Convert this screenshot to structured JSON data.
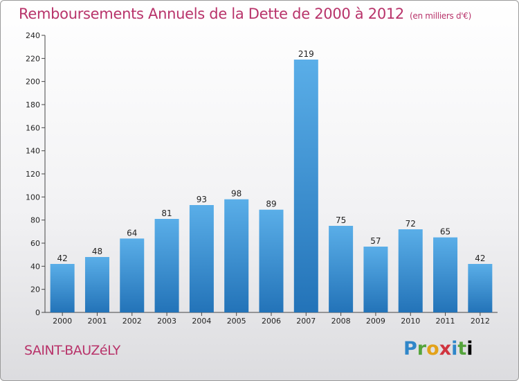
{
  "title": "Remboursements Annuels de la Dette de 2000 à 2012",
  "subtitle": "(en milliers d'€)",
  "commune": "SAINT-BAUZéLY",
  "logo": {
    "letters": [
      "P",
      "r",
      "o",
      "x",
      "i",
      "t",
      "i"
    ]
  },
  "colors": {
    "title": "#b8336a",
    "bar_top": "#5aaee8",
    "bar_bottom": "#2373b8"
  },
  "chart_data": {
    "type": "bar",
    "categories": [
      "2000",
      "2001",
      "2002",
      "2003",
      "2004",
      "2005",
      "2006",
      "2007",
      "2008",
      "2009",
      "2010",
      "2011",
      "2012"
    ],
    "values": [
      42,
      48,
      64,
      81,
      93,
      98,
      89,
      219,
      75,
      57,
      72,
      65,
      42
    ],
    "ylim": [
      0,
      240
    ],
    "yticks": [
      0,
      20,
      40,
      60,
      80,
      100,
      120,
      140,
      160,
      180,
      200,
      220,
      240
    ],
    "grid": false,
    "data_labels": true
  }
}
